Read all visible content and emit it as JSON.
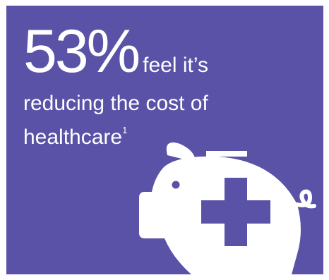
{
  "card": {
    "background_color": "#5a52a6",
    "text_color": "#ffffff"
  },
  "headline": {
    "stat": "53%",
    "line1_rest": "feel it’s",
    "line2": "reducing the cost of",
    "line3": "healthcare",
    "footnote_marker": "1"
  },
  "illustration": {
    "icon": "piggy-bank-medical-cross-icon",
    "fill_color": "#ffffff",
    "cross_color": "#5a52a6"
  }
}
